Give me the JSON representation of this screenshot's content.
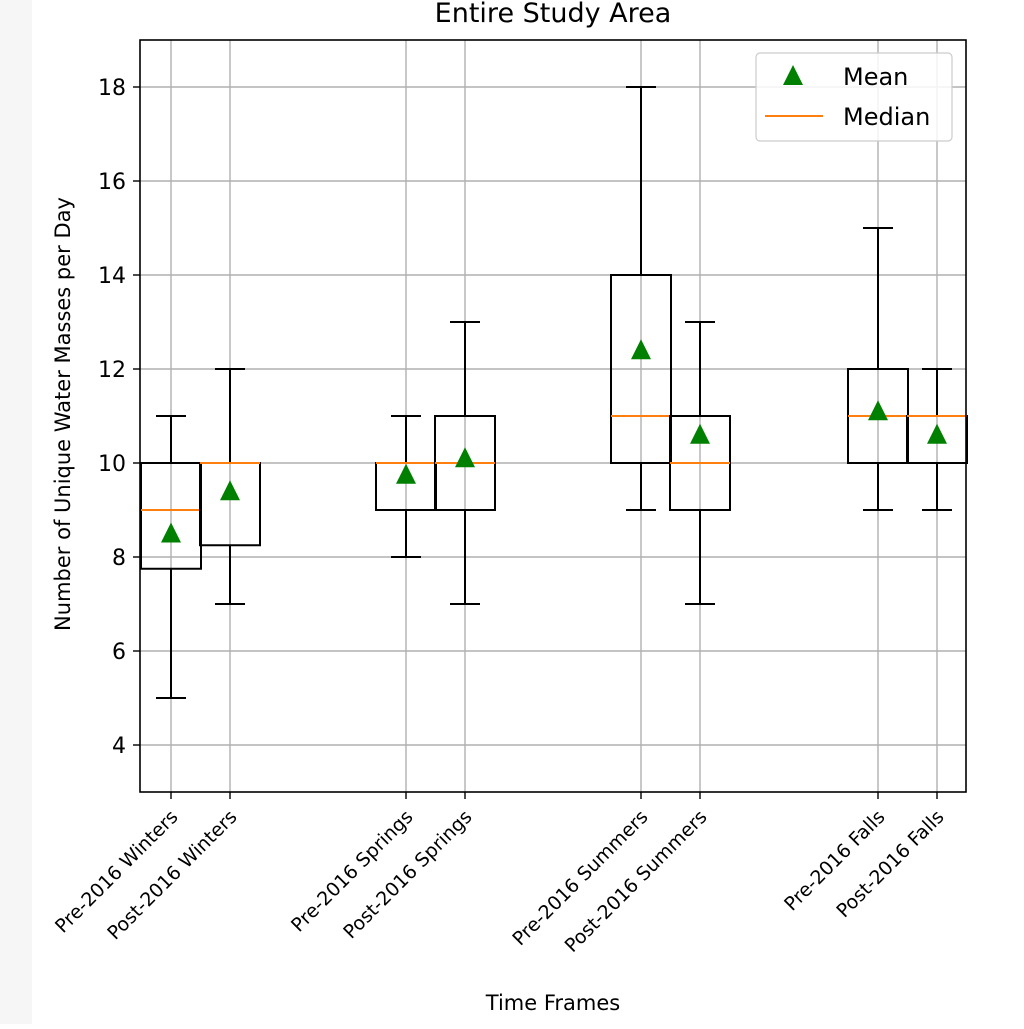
{
  "chart_data": {
    "type": "box",
    "title": "Entire Study Area",
    "xlabel": "Time Frames",
    "ylabel": "Number of Unique Water Masses per Day",
    "ylim": [
      3,
      19
    ],
    "yticks": [
      4,
      6,
      8,
      10,
      12,
      14,
      16,
      18
    ],
    "grid": true,
    "legend": {
      "placement": "top-right",
      "entries": [
        {
          "label": "Mean",
          "marker": "triangle"
        },
        {
          "label": "Median",
          "marker": "line"
        }
      ]
    },
    "colors": {
      "mean": "#008000",
      "median": "#ff7f0e",
      "box": "#000000",
      "grid": "#b0b0b0"
    },
    "categories": [
      {
        "label": "Pre-2016 Winters",
        "whisker_low": 5,
        "q1": 7.75,
        "median": 9,
        "q3": 10,
        "whisker_high": 11,
        "mean": 8.5
      },
      {
        "label": "Post-2016 Winters",
        "whisker_low": 7,
        "q1": 8.25,
        "median": 10,
        "q3": 10,
        "whisker_high": 12,
        "mean": 9.4
      },
      {
        "label": "Pre-2016 Springs",
        "whisker_low": 8,
        "q1": 9,
        "median": 10,
        "q3": 10,
        "whisker_high": 11,
        "mean": 9.75
      },
      {
        "label": "Post-2016 Springs",
        "whisker_low": 7,
        "q1": 9,
        "median": 10,
        "q3": 11,
        "whisker_high": 13,
        "mean": 10.1
      },
      {
        "label": "Pre-2016 Summers",
        "whisker_low": 9,
        "q1": 10,
        "median": 11,
        "q3": 14,
        "whisker_high": 18,
        "mean": 12.4
      },
      {
        "label": "Post-2016 Summers",
        "whisker_low": 7,
        "q1": 9,
        "median": 10,
        "q3": 11,
        "whisker_high": 13,
        "mean": 10.6
      },
      {
        "label": "Pre-2016 Falls",
        "whisker_low": 9,
        "q1": 10,
        "median": 11,
        "q3": 12,
        "whisker_high": 15,
        "mean": 11.1
      },
      {
        "label": "Post-2016 Falls",
        "whisker_low": 9,
        "q1": 10,
        "median": 11,
        "q3": 11,
        "whisker_high": 12,
        "mean": 10.6
      }
    ]
  }
}
